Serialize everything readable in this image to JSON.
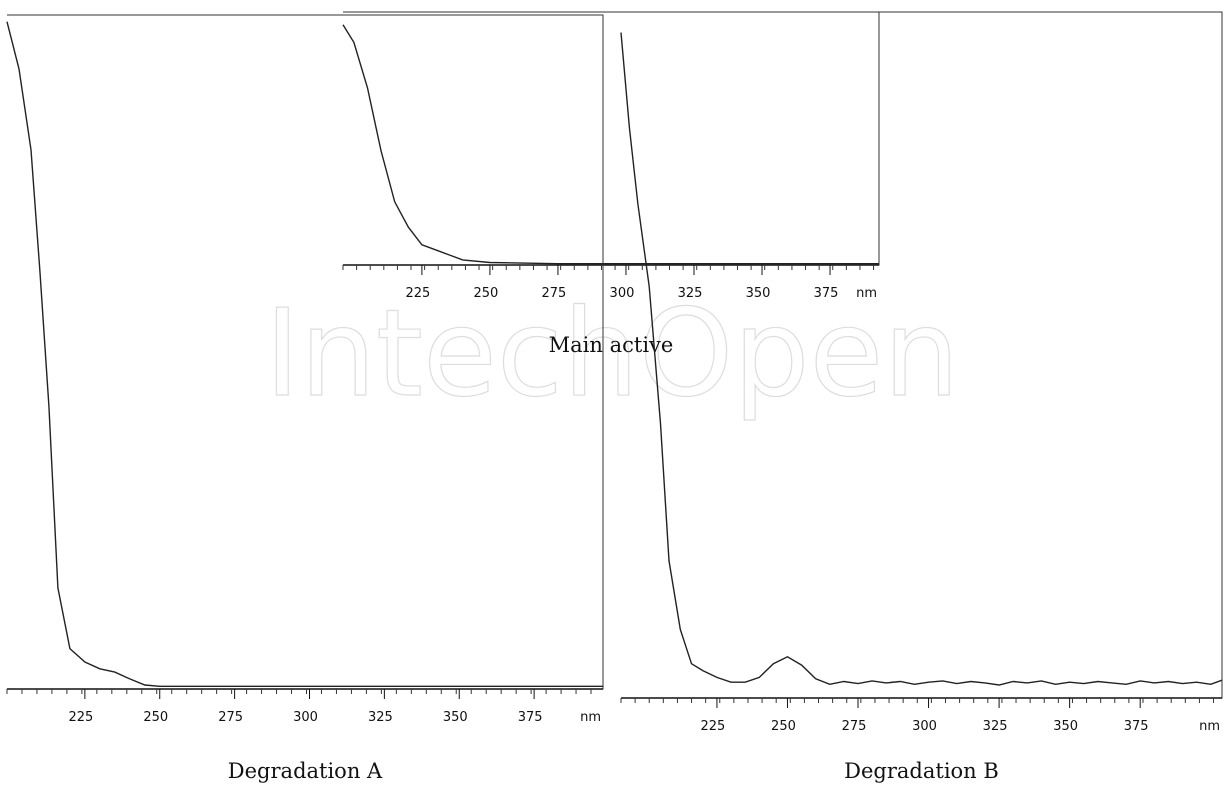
{
  "watermark": "IntechOpen",
  "chart_data": [
    {
      "type": "line",
      "title": "Main active",
      "x_label": "nm",
      "color": "#222",
      "x": [
        196,
        200,
        205,
        210,
        215,
        220,
        225,
        230,
        235,
        240,
        250,
        275,
        300,
        325,
        350,
        375,
        393
      ],
      "values": [
        95,
        88,
        70,
        45,
        25,
        15,
        8,
        6,
        4,
        2,
        1,
        0.5,
        0.5,
        0.5,
        0.5,
        0.5,
        0.5
      ],
      "xlim": [
        196,
        393
      ],
      "ylim": [
        0,
        100
      ],
      "xticks": [
        225,
        250,
        275,
        300,
        325,
        350,
        375
      ]
    },
    {
      "type": "line",
      "title": "Degradation A",
      "x_label": "nm",
      "color": "#222",
      "x": [
        199,
        203,
        207,
        210,
        213,
        216,
        220,
        225,
        230,
        235,
        240,
        245,
        250,
        275,
        300,
        325,
        350,
        375,
        398
      ],
      "values": [
        99,
        92,
        80,
        62,
        42,
        15,
        6,
        4,
        3,
        2.5,
        1.5,
        0.6,
        0.4,
        0.4,
        0.4,
        0.4,
        0.4,
        0.4,
        0.4
      ],
      "xlim": [
        199,
        398
      ],
      "ylim": [
        0,
        100
      ],
      "xticks": [
        225,
        250,
        275,
        300,
        325,
        350,
        375
      ]
    },
    {
      "type": "line",
      "title": "Degradation B",
      "x_label": "nm",
      "color": "#222",
      "x": [
        191,
        194,
        197,
        201,
        205,
        208,
        212,
        216,
        220,
        225,
        230,
        235,
        240,
        245,
        250,
        255,
        260,
        265,
        270,
        275,
        280,
        285,
        290,
        295,
        300,
        305,
        310,
        315,
        320,
        325,
        330,
        335,
        340,
        345,
        350,
        355,
        360,
        365,
        370,
        375,
        380,
        385,
        390,
        395,
        400,
        404
      ],
      "values": [
        97,
        83,
        72,
        60,
        40,
        20,
        10,
        5,
        4,
        3,
        2.3,
        2.3,
        3,
        5,
        6,
        4.8,
        2.8,
        2,
        2.4,
        2.1,
        2.5,
        2.2,
        2.4,
        2.0,
        2.3,
        2.5,
        2.1,
        2.4,
        2.2,
        1.9,
        2.4,
        2.2,
        2.5,
        2.0,
        2.3,
        2.1,
        2.4,
        2.2,
        2.0,
        2.5,
        2.2,
        2.4,
        2.1,
        2.3,
        2.0,
        2.6
      ],
      "xlim": [
        191,
        404
      ],
      "ylim": [
        0,
        100
      ],
      "xticks": [
        225,
        250,
        275,
        300,
        325,
        350,
        375
      ]
    }
  ]
}
